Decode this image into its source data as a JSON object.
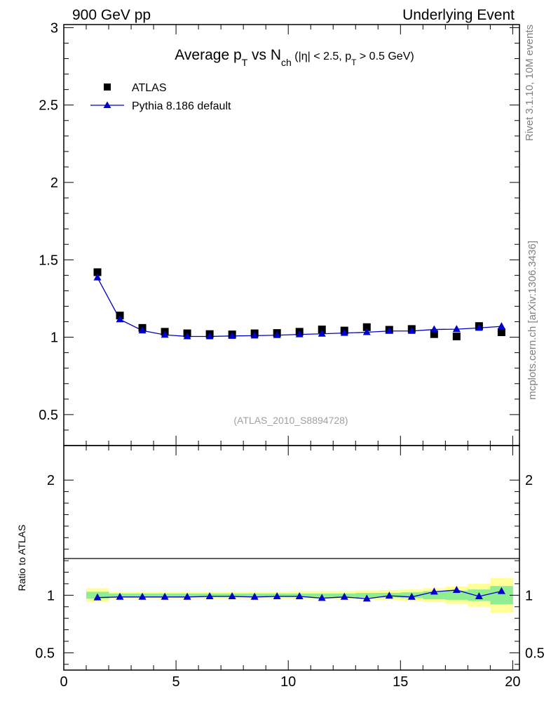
{
  "header": {
    "left": "900 GeV pp",
    "right": "Underlying Event"
  },
  "side_labels": {
    "rivet": "Rivet 3.1.10,  10M events",
    "mcplots": "mcplots.cern.ch [arXiv:1306.3436]"
  },
  "reference_label": "(ATLAS_2010_S8894728)",
  "chart_data": {
    "type": "scatter",
    "title": {
      "text1": "Average p",
      "sub1": "T",
      "text2": " vs N",
      "sub2": "ch",
      "text3": " (|η| < 2.5, p",
      "sub3": "T",
      "text4": " > 0.5 GeV)"
    },
    "legend": {
      "placement": "top-left",
      "entries": [
        {
          "name": "ATLAS",
          "marker": "square",
          "color": "#000000"
        },
        {
          "name": "Pythia 8.186 default",
          "marker": "triangle",
          "color": "#0000cc"
        }
      ]
    },
    "xlim": [
      0,
      20.3
    ],
    "x_ticks": [
      "0",
      "5",
      "10",
      "15",
      "20"
    ],
    "x": [
      1.5,
      2.5,
      3.5,
      4.5,
      5.5,
      6.5,
      7.5,
      8.5,
      9.5,
      10.5,
      11.5,
      12.5,
      13.5,
      14.5,
      15.5,
      16.5,
      17.5,
      18.5,
      19.5
    ],
    "main": {
      "ylim": [
        0.3,
        3.02
      ],
      "y_ticks": [
        "0.5",
        "1",
        "1.5",
        "2",
        "2.5",
        "3"
      ],
      "series": [
        {
          "name": "ATLAS",
          "values": [
            1.42,
            1.14,
            1.06,
            1.035,
            1.025,
            1.02,
            1.018,
            1.025,
            1.027,
            1.035,
            1.05,
            1.043,
            1.065,
            1.048,
            1.053,
            1.02,
            1.005,
            1.072,
            1.032
          ]
        },
        {
          "name": "Pythia 8.186 default",
          "values": [
            1.385,
            1.115,
            1.043,
            1.015,
            1.005,
            1.005,
            1.008,
            1.01,
            1.013,
            1.018,
            1.022,
            1.027,
            1.032,
            1.04,
            1.04,
            1.05,
            1.052,
            1.06,
            1.07
          ]
        }
      ]
    },
    "ratio": {
      "ylabel": "Ratio to ATLAS",
      "ylim": [
        0.35,
        2.3
      ],
      "y_ticks": [
        "0.5",
        "1",
        "2"
      ],
      "values": [
        0.98,
        0.985,
        0.985,
        0.985,
        0.985,
        0.99,
        0.99,
        0.985,
        0.99,
        0.99,
        0.975,
        0.985,
        0.97,
        0.995,
        0.985,
        1.03,
        1.045,
        0.99,
        1.035
      ],
      "band_stat": [
        [
          0.97,
          1.03
        ],
        [
          0.985,
          1.015
        ],
        [
          0.985,
          1.015
        ],
        [
          0.985,
          1.015
        ],
        [
          0.985,
          1.015
        ],
        [
          0.985,
          1.015
        ],
        [
          0.985,
          1.015
        ],
        [
          0.985,
          1.015
        ],
        [
          0.985,
          1.015
        ],
        [
          0.985,
          1.015
        ],
        [
          0.985,
          1.015
        ],
        [
          0.985,
          1.015
        ],
        [
          0.98,
          1.02
        ],
        [
          0.98,
          1.02
        ],
        [
          0.975,
          1.025
        ],
        [
          0.965,
          1.035
        ],
        [
          0.96,
          1.04
        ],
        [
          0.95,
          1.05
        ],
        [
          0.92,
          1.08
        ]
      ],
      "band_total": [
        [
          0.94,
          1.06
        ],
        [
          0.97,
          1.03
        ],
        [
          0.97,
          1.03
        ],
        [
          0.97,
          1.03
        ],
        [
          0.97,
          1.03
        ],
        [
          0.97,
          1.03
        ],
        [
          0.97,
          1.03
        ],
        [
          0.97,
          1.03
        ],
        [
          0.97,
          1.03
        ],
        [
          0.97,
          1.035
        ],
        [
          0.965,
          1.035
        ],
        [
          0.965,
          1.035
        ],
        [
          0.96,
          1.04
        ],
        [
          0.96,
          1.045
        ],
        [
          0.95,
          1.05
        ],
        [
          0.94,
          1.06
        ],
        [
          0.925,
          1.075
        ],
        [
          0.9,
          1.1
        ],
        [
          0.85,
          1.15
        ]
      ],
      "band_colors": {
        "stat": "#90ee90",
        "total": "#ffff99"
      }
    },
    "colors": {
      "data": "#000000",
      "mc": "#0000cc"
    }
  }
}
